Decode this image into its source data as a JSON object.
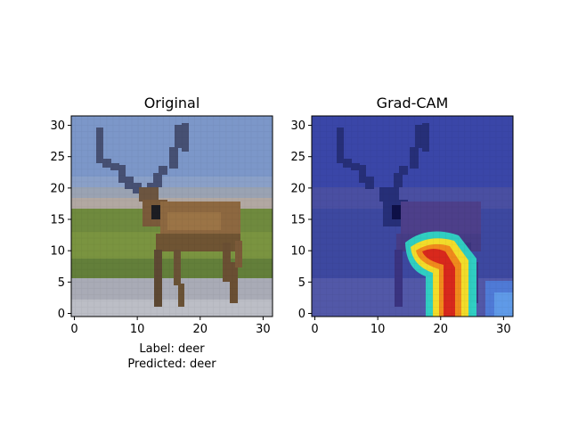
{
  "chart_data": [
    {
      "type": "heatmap",
      "title": "Original",
      "image_content": "pixelated photo of a deer on grass",
      "xlim": [
        -0.5,
        31.5
      ],
      "ylim": [
        31.5,
        -0.5
      ],
      "xticks": [
        0,
        10,
        20,
        30
      ],
      "yticks": [
        0,
        5,
        10,
        15,
        20,
        25,
        30
      ],
      "xtick_labels": [
        "0",
        "10",
        "20",
        "30"
      ],
      "ytick_labels": [
        "0",
        "5",
        "10",
        "15",
        "20",
        "25",
        "30"
      ],
      "caption_lines": [
        "Label: deer",
        "Predicted: deer"
      ]
    },
    {
      "type": "heatmap",
      "title": "Grad-CAM",
      "colormap": "jet",
      "image_content": "deer photo overlaid with Grad-CAM heatmap, activation concentrated around the lower body/legs",
      "xlim": [
        -0.5,
        31.5
      ],
      "ylim": [
        31.5,
        -0.5
      ],
      "xticks": [
        0,
        10,
        20,
        30
      ],
      "yticks": [
        0,
        5,
        10,
        15,
        20,
        25,
        30
      ],
      "xtick_labels": [
        "0",
        "10",
        "20",
        "30"
      ],
      "ytick_labels": [
        "0",
        "5",
        "10",
        "15",
        "20",
        "25",
        "30"
      ]
    }
  ],
  "colors": {
    "sky": "#7b96c8",
    "grass": "#6f8a3e",
    "deer_body": "#8a6640",
    "overlay_background": "#3a46a8",
    "hot": "#d8241c",
    "warm": "#f0c824",
    "cool": "#3ad0c8"
  }
}
